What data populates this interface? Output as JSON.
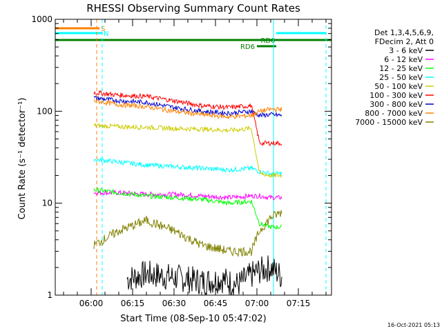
{
  "chart_data": {
    "type": "line",
    "title": "RHESSI Observing Summary Count Rates",
    "xlabel": "Start Time (08-Sep-10 05:47:02)",
    "ylabel": "Count Rate (s⁻¹ detector⁻¹)",
    "y_scale": "log",
    "ylim": [
      1,
      1000
    ],
    "xlim": [
      "05:47",
      "07:27"
    ],
    "x_ticks": [
      "06:00",
      "06:15",
      "06:30",
      "06:45",
      "07:00",
      "07:15"
    ],
    "y_ticks": [
      "1",
      "10",
      "100",
      "1000"
    ],
    "timestamp": "16-Oct-2021 05:13",
    "legend_header": [
      "Det 1,3,4,5,6,9,",
      "FDecim 2, Att 0"
    ],
    "grid": false,
    "legend_position": "right",
    "series": [
      {
        "name": "3 - 6 keV",
        "color": "#000000",
        "x": [
          "06:13",
          "06:20",
          "06:27",
          "06:34",
          "06:41",
          "06:47",
          "06:53",
          "07:00",
          "07:05",
          "07:09"
        ],
        "values": [
          1.5,
          1.7,
          1.6,
          1.5,
          1.4,
          1.5,
          1.3,
          1.8,
          2.0,
          1.6
        ]
      },
      {
        "name": "6 - 12 keV",
        "color": "#ff00ff",
        "x": [
          "06:01",
          "06:10",
          "06:20",
          "06:30",
          "06:40",
          "06:50",
          "06:58",
          "07:01",
          "07:05",
          "07:09"
        ],
        "values": [
          13,
          13,
          12.5,
          12.5,
          12,
          11.5,
          12,
          12,
          11.5,
          11.5
        ]
      },
      {
        "name": "12 - 25 keV",
        "color": "#00ff00",
        "x": [
          "06:01",
          "06:10",
          "06:20",
          "06:30",
          "06:40",
          "06:50",
          "06:58",
          "07:01",
          "07:05",
          "07:09"
        ],
        "values": [
          14,
          13,
          12,
          11.5,
          11,
          10,
          10.5,
          6,
          5.5,
          5.5
        ]
      },
      {
        "name": "25 - 50 keV",
        "color": "#00ffff",
        "x": [
          "06:01",
          "06:10",
          "06:20",
          "06:30",
          "06:40",
          "06:50",
          "06:58",
          "07:01",
          "07:05",
          "07:09"
        ],
        "values": [
          30,
          28,
          26,
          25,
          24,
          23,
          24,
          22,
          21,
          21
        ]
      },
      {
        "name": "50 - 100 keV",
        "color": "#cccc00",
        "x": [
          "06:01",
          "06:10",
          "06:20",
          "06:30",
          "06:40",
          "06:50",
          "06:58",
          "07:01",
          "07:05",
          "07:09"
        ],
        "values": [
          70,
          68,
          67,
          65,
          64,
          62,
          65,
          21,
          20,
          20
        ]
      },
      {
        "name": "100 - 300 keV",
        "color": "#ff0000",
        "x": [
          "06:01",
          "06:10",
          "06:20",
          "06:30",
          "06:40",
          "06:50",
          "06:58",
          "07:01",
          "07:05",
          "07:09"
        ],
        "values": [
          160,
          150,
          145,
          130,
          115,
          110,
          115,
          45,
          45,
          45
        ]
      },
      {
        "name": "300 - 800 keV",
        "color": "#0000cc",
        "x": [
          "06:01",
          "06:10",
          "06:20",
          "06:30",
          "06:40",
          "06:50",
          "06:58",
          "07:01",
          "07:05",
          "07:09"
        ],
        "values": [
          140,
          130,
          125,
          110,
          100,
          95,
          100,
          90,
          92,
          90
        ]
      },
      {
        "name": "800 - 7000 keV",
        "color": "#ff8000",
        "x": [
          "06:01",
          "06:10",
          "06:20",
          "06:30",
          "06:40",
          "06:50",
          "06:58",
          "07:01",
          "07:05",
          "07:09"
        ],
        "values": [
          130,
          118,
          112,
          100,
          92,
          87,
          90,
          100,
          105,
          105
        ]
      },
      {
        "name": "7000 - 15000 keV",
        "color": "#808000",
        "x": [
          "06:01",
          "06:10",
          "06:20",
          "06:30",
          "06:40",
          "06:50",
          "06:58",
          "07:01",
          "07:05",
          "07:09"
        ],
        "values": [
          3.5,
          5,
          6.5,
          5,
          3.5,
          3,
          3,
          5,
          7,
          8
        ]
      }
    ],
    "flags": [
      {
        "label": "S",
        "color": "#ff8000",
        "segments": [
          [
            "05:47",
            "06:03"
          ]
        ],
        "level": 0
      },
      {
        "label": "N",
        "color": "#00ffff",
        "segments": [
          [
            "05:47",
            "06:04"
          ],
          [
            "07:07",
            "07:25"
          ]
        ],
        "level": 1
      },
      {
        "label": "RD0",
        "color": "#008000",
        "segments": [
          [
            "05:47",
            "07:27"
          ]
        ],
        "level": 2
      },
      {
        "label": "RD6",
        "color": "#008000",
        "segments": [
          [
            "07:00",
            "07:07"
          ]
        ],
        "level": 3
      }
    ],
    "vertical_lines": [
      {
        "x": "05:47",
        "color": "#00ffff",
        "style": "solid"
      },
      {
        "x": "06:02",
        "color": "#ff8000",
        "style": "dashed"
      },
      {
        "x": "06:04",
        "color": "#00ffff",
        "style": "dashed"
      },
      {
        "x": "07:06",
        "color": "#00ffff",
        "style": "solid"
      },
      {
        "x": "07:25",
        "color": "#00ffff",
        "style": "dashed"
      }
    ]
  }
}
